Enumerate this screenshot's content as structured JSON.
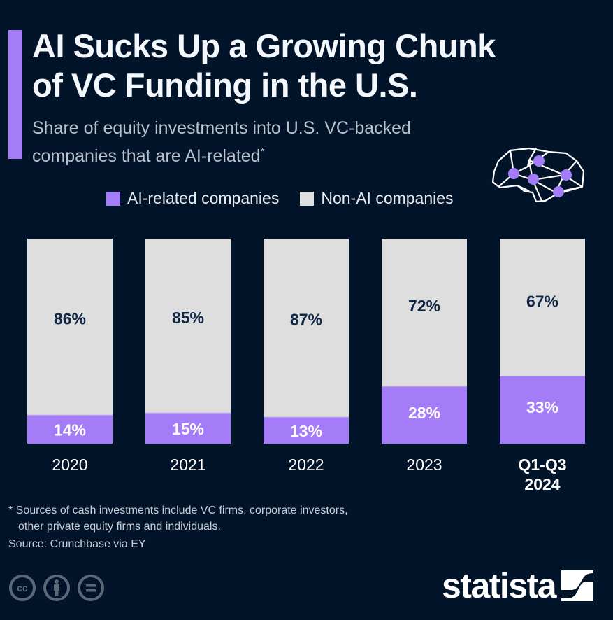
{
  "header": {
    "title_line1": "AI Sucks Up a Growing Chunk",
    "title_line2": "of VC Funding in the U.S.",
    "subtitle_line1": "Share of equity investments into U.S. VC-backed",
    "subtitle_line2": "companies that are AI-related",
    "subtitle_mark": "*"
  },
  "icons": {
    "illustration": "brain-network-icon",
    "license": [
      "creative-commons-icon",
      "attribution-icon",
      "no-derivatives-icon"
    ],
    "logo": "statista-logo"
  },
  "colors": {
    "background": "#02142a",
    "accent": "#a47cf7",
    "non_ai": "#dedede",
    "label_dark": "#0f2745",
    "label_light": "#ffffff"
  },
  "chart_data": {
    "type": "bar",
    "stacked": true,
    "title": "AI Sucks Up a Growing Chunk of VC Funding in the U.S.",
    "subtitle": "Share of equity investments into U.S. VC-backed companies that are AI-related*",
    "categories": [
      "2020",
      "2021",
      "2022",
      "2023",
      "Q1-Q3 2024"
    ],
    "category_lines": [
      [
        "2020"
      ],
      [
        "2021"
      ],
      [
        "2022"
      ],
      [
        "2023"
      ],
      [
        "Q1-Q3",
        "2024"
      ]
    ],
    "bold_category_index": 4,
    "series": [
      {
        "name": "AI-related companies",
        "color": "#a47cf7",
        "values": [
          14,
          15,
          13,
          28,
          33
        ]
      },
      {
        "name": "Non-AI companies",
        "color": "#dedede",
        "values": [
          86,
          85,
          87,
          72,
          67
        ]
      }
    ],
    "value_suffix": "%",
    "ylim": [
      0,
      100
    ],
    "xlabel": "",
    "ylabel": "",
    "grid": false,
    "legend_position": "top-right"
  },
  "legend": {
    "items": [
      {
        "label": "AI-related companies",
        "color": "#a47cf7"
      },
      {
        "label": "Non-AI companies",
        "color": "#dedede"
      }
    ]
  },
  "footer": {
    "footnote_line1": "* Sources of cash investments include VC firms, corporate investors,",
    "footnote_line2": "other private equity firms and individuals.",
    "source": "Source: Crunchbase via EY",
    "logo_text": "statista"
  }
}
